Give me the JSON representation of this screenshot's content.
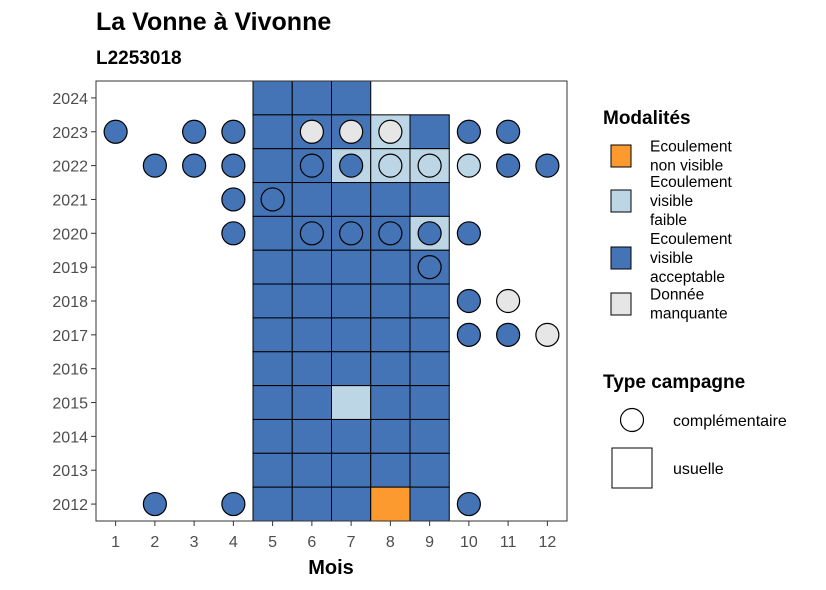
{
  "chart_data": {
    "type": "heatmap",
    "title": "La Vonne à Vivonne",
    "subtitle": "L2253018",
    "xlabel": "Mois",
    "ylabel": "",
    "x_ticks": [
      "1",
      "2",
      "3",
      "4",
      "5",
      "6",
      "7",
      "8",
      "9",
      "10",
      "11",
      "12"
    ],
    "y_ticks": [
      "2012",
      "2013",
      "2014",
      "2015",
      "2016",
      "2017",
      "2018",
      "2019",
      "2020",
      "2021",
      "2022",
      "2023",
      "2024"
    ],
    "xlim": [
      0.5,
      12.5
    ],
    "ylim": [
      2011.5,
      2024.5
    ],
    "grid": false,
    "colors": {
      "non_visible": "#fd9a2f",
      "faible": "#bcd6e6",
      "acceptable": "#4473b6",
      "manquante": "#e6e6e6"
    },
    "legend_modalites": {
      "title": "Modalités",
      "items": [
        {
          "key": "non_visible",
          "lines": [
            "Ecoulement",
            "non visible"
          ]
        },
        {
          "key": "faible",
          "lines": [
            "Ecoulement",
            "visible",
            "faible"
          ]
        },
        {
          "key": "acceptable",
          "lines": [
            "Ecoulement",
            "visible",
            "acceptable"
          ]
        },
        {
          "key": "manquante",
          "lines": [
            "Donnée",
            "manquante"
          ]
        }
      ]
    },
    "legend_campagne": {
      "title": "Type campagne",
      "items": [
        {
          "shape": "circle",
          "label": "complémentaire"
        },
        {
          "shape": "square",
          "label": "usuelle"
        }
      ]
    },
    "usuelle": [
      {
        "year": 2024,
        "months": {
          "5": "acceptable",
          "6": "acceptable",
          "7": "acceptable"
        }
      },
      {
        "year": 2023,
        "months": {
          "5": "acceptable",
          "6": "acceptable",
          "7": "acceptable",
          "8": "faible",
          "9": "acceptable"
        }
      },
      {
        "year": 2022,
        "months": {
          "5": "acceptable",
          "6": "acceptable",
          "7": "faible",
          "8": "faible",
          "9": "faible"
        }
      },
      {
        "year": 2021,
        "months": {
          "5": "acceptable",
          "6": "acceptable",
          "7": "acceptable",
          "8": "acceptable",
          "9": "acceptable"
        }
      },
      {
        "year": 2020,
        "months": {
          "5": "acceptable",
          "6": "acceptable",
          "7": "acceptable",
          "8": "acceptable",
          "9": "faible"
        }
      },
      {
        "year": 2019,
        "months": {
          "5": "acceptable",
          "6": "acceptable",
          "7": "acceptable",
          "8": "acceptable",
          "9": "acceptable"
        }
      },
      {
        "year": 2018,
        "months": {
          "5": "acceptable",
          "6": "acceptable",
          "7": "acceptable",
          "8": "acceptable",
          "9": "acceptable"
        }
      },
      {
        "year": 2017,
        "months": {
          "5": "acceptable",
          "6": "acceptable",
          "7": "acceptable",
          "8": "acceptable",
          "9": "acceptable"
        }
      },
      {
        "year": 2016,
        "months": {
          "5": "acceptable",
          "6": "acceptable",
          "7": "acceptable",
          "8": "acceptable",
          "9": "acceptable"
        }
      },
      {
        "year": 2015,
        "months": {
          "5": "acceptable",
          "6": "acceptable",
          "7": "faible",
          "8": "acceptable",
          "9": "acceptable"
        }
      },
      {
        "year": 2014,
        "months": {
          "5": "acceptable",
          "6": "acceptable",
          "7": "acceptable",
          "8": "acceptable",
          "9": "acceptable"
        }
      },
      {
        "year": 2013,
        "months": {
          "5": "acceptable",
          "6": "acceptable",
          "7": "acceptable",
          "8": "acceptable",
          "9": "acceptable"
        }
      },
      {
        "year": 2012,
        "months": {
          "5": "acceptable",
          "6": "acceptable",
          "7": "acceptable",
          "8": "non_visible",
          "9": "acceptable"
        }
      }
    ],
    "complementaire": [
      {
        "year": 2023,
        "months": {
          "1": "acceptable",
          "3": "acceptable",
          "4": "acceptable",
          "6": "manquante",
          "7": "manquante",
          "8": "manquante",
          "10": "acceptable",
          "11": "acceptable"
        }
      },
      {
        "year": 2022,
        "months": {
          "2": "acceptable",
          "3": "acceptable",
          "4": "acceptable",
          "6": "acceptable",
          "7": "acceptable",
          "8": "faible",
          "9": "faible",
          "10": "faible",
          "11": "acceptable",
          "12": "acceptable"
        }
      },
      {
        "year": 2021,
        "months": {
          "4": "acceptable",
          "5": "acceptable"
        }
      },
      {
        "year": 2020,
        "months": {
          "4": "acceptable",
          "6": "acceptable",
          "7": "acceptable",
          "8": "acceptable",
          "9": "acceptable",
          "10": "acceptable"
        }
      },
      {
        "year": 2019,
        "months": {
          "9": "acceptable"
        }
      },
      {
        "year": 2018,
        "months": {
          "10": "acceptable",
          "11": "manquante"
        }
      },
      {
        "year": 2017,
        "months": {
          "10": "acceptable",
          "11": "acceptable",
          "12": "manquante"
        }
      },
      {
        "year": 2012,
        "months": {
          "2": "acceptable",
          "4": "acceptable",
          "10": "acceptable"
        }
      }
    ]
  }
}
